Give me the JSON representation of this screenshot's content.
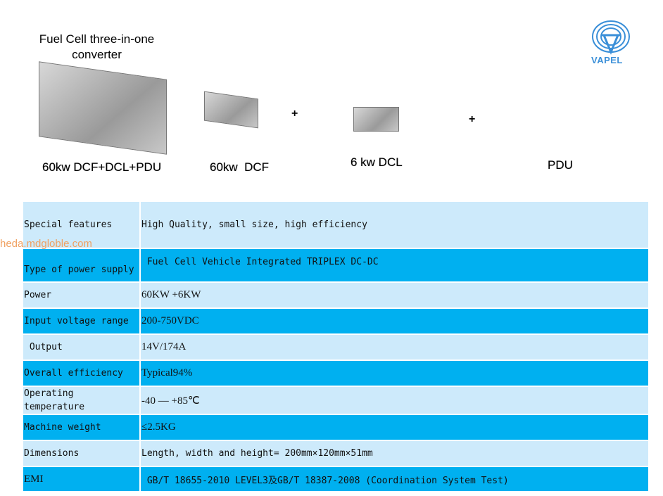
{
  "header": {
    "title": "Fuel Cell three-in-one converter",
    "logo_text": "VAPEL"
  },
  "products": [
    {
      "caption": "60kw DCF+DCL+PDU"
    },
    {
      "caption": "60kw  DCF"
    },
    {
      "caption": "6 kw DCL"
    },
    {
      "caption": "PDU"
    }
  ],
  "plus": "+",
  "watermark": "heda.mdgloble.com",
  "colors": {
    "row_light": "#cdeafb",
    "row_dark": "#00b0f0",
    "logo": "#3a8fd8"
  },
  "specs": [
    {
      "label": "Special features",
      "value": "High Quality, small size, high efficiency"
    },
    {
      "label": "Type of power supply",
      "value": " Fuel Cell Vehicle Integrated TRIPLEX DC-DC"
    },
    {
      "label": "Power",
      "value": "60KW +6KW"
    },
    {
      "label": "Input voltage range",
      "value": "200-750VDC"
    },
    {
      "label": " Output",
      "value": "14V/174A"
    },
    {
      "label": "Overall efficiency",
      "value": "Typical94%"
    },
    {
      "label": "Operating temperature",
      "value": "-40 — +85℃"
    },
    {
      "label": "Machine weight",
      "value": "≤2.5KG"
    },
    {
      "label": "Dimensions",
      "value": "Length, width and height= 200mm×120mm×51mm"
    },
    {
      "label": "EMI",
      "value": " GB/T 18655-2010 LEVEL3及GB/T 18387-2008 (Coordination System Test)"
    }
  ]
}
